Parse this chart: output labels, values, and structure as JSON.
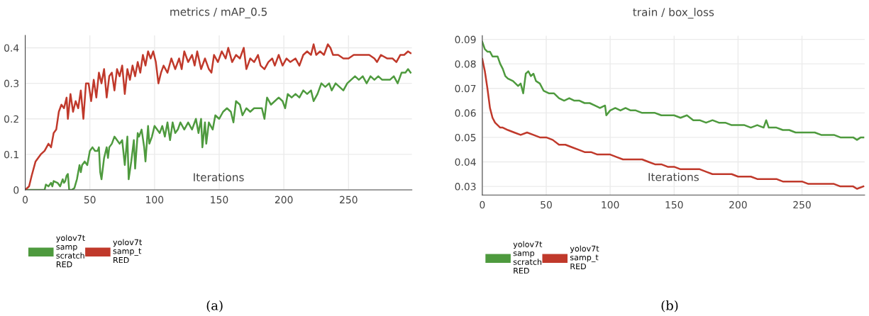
{
  "chart_data": [
    {
      "type": "line",
      "title": "metrics / mAP_0.5",
      "xlabel": "Iterations",
      "xlim": [
        0,
        299
      ],
      "xticks": [
        0,
        50,
        100,
        150,
        200,
        250
      ],
      "ylim": [
        0,
        0.435
      ],
      "yticks": [
        0,
        0.1,
        0.2,
        0.3,
        0.4
      ],
      "grid": true,
      "legend": "bottom left",
      "annotations": [
        "(a)"
      ],
      "series": [
        {
          "name": "yolov7t\nsamp\nscratch\nRED",
          "color": "#4e9a3e",
          "x": [
            0,
            15,
            16,
            18,
            20,
            21,
            22,
            25,
            27,
            29,
            30,
            31,
            32,
            33,
            34,
            36,
            38,
            40,
            42,
            43,
            44,
            46,
            48,
            50,
            52,
            54,
            56,
            57,
            58,
            59,
            61,
            63,
            64,
            65,
            67,
            69,
            71,
            73,
            75,
            77,
            79,
            80,
            82,
            84,
            85,
            87,
            88,
            90,
            92,
            93,
            95,
            96,
            98,
            100,
            102,
            104,
            106,
            108,
            110,
            112,
            114,
            116,
            118,
            120,
            123,
            126,
            129,
            132,
            134,
            136,
            137,
            139,
            140,
            142,
            145,
            147,
            150,
            153,
            156,
            159,
            161,
            163,
            166,
            168,
            171,
            174,
            177,
            180,
            183,
            185,
            187,
            190,
            193,
            196,
            199,
            201,
            203,
            206,
            209,
            212,
            215,
            218,
            221,
            223,
            226,
            229,
            232,
            235,
            237,
            240,
            243,
            246,
            249,
            252,
            255,
            258,
            261,
            264,
            267,
            270,
            273,
            276,
            279,
            282,
            285,
            288,
            291,
            294,
            296,
            298
          ],
          "values": [
            0,
            0,
            0.015,
            0.01,
            0.02,
            0.01,
            0.025,
            0.02,
            0.01,
            0.03,
            0.02,
            0.025,
            0.04,
            0.045,
            0,
            0,
            0.005,
            0.03,
            0.07,
            0.05,
            0.07,
            0.08,
            0.07,
            0.11,
            0.12,
            0.11,
            0.11,
            0.12,
            0.05,
            0.03,
            0.09,
            0.12,
            0.09,
            0.12,
            0.13,
            0.15,
            0.14,
            0.13,
            0.14,
            0.07,
            0.15,
            0.03,
            0.08,
            0.14,
            0.06,
            0.16,
            0.15,
            0.17,
            0.12,
            0.08,
            0.18,
            0.13,
            0.15,
            0.18,
            0.17,
            0.16,
            0.18,
            0.15,
            0.19,
            0.14,
            0.19,
            0.16,
            0.17,
            0.19,
            0.17,
            0.19,
            0.17,
            0.2,
            0.16,
            0.2,
            0.12,
            0.19,
            0.13,
            0.19,
            0.17,
            0.21,
            0.2,
            0.22,
            0.23,
            0.22,
            0.19,
            0.25,
            0.24,
            0.21,
            0.23,
            0.22,
            0.23,
            0.23,
            0.23,
            0.2,
            0.26,
            0.24,
            0.25,
            0.26,
            0.25,
            0.23,
            0.27,
            0.26,
            0.27,
            0.26,
            0.28,
            0.27,
            0.28,
            0.25,
            0.27,
            0.3,
            0.29,
            0.3,
            0.28,
            0.3,
            0.29,
            0.28,
            0.3,
            0.31,
            0.32,
            0.31,
            0.32,
            0.3,
            0.32,
            0.31,
            0.32,
            0.31,
            0.31,
            0.31,
            0.32,
            0.3,
            0.33,
            0.33,
            0.34,
            0.33
          ]
        },
        {
          "name": "yolov7t\nsamp_t\nRED",
          "color": "#c0392b",
          "x": [
            0,
            3,
            5,
            8,
            10,
            12,
            15,
            18,
            20,
            22,
            24,
            26,
            28,
            30,
            32,
            33,
            35,
            37,
            39,
            41,
            43,
            45,
            47,
            49,
            51,
            53,
            55,
            57,
            59,
            61,
            63,
            65,
            67,
            69,
            71,
            73,
            75,
            77,
            79,
            81,
            83,
            85,
            87,
            89,
            91,
            93,
            95,
            97,
            99,
            101,
            103,
            105,
            107,
            110,
            113,
            116,
            119,
            121,
            123,
            126,
            129,
            131,
            133,
            136,
            139,
            142,
            144,
            146,
            149,
            152,
            155,
            157,
            160,
            163,
            166,
            169,
            171,
            174,
            177,
            180,
            182,
            185,
            188,
            191,
            193,
            196,
            199,
            202,
            205,
            209,
            212,
            215,
            218,
            221,
            223,
            225,
            228,
            231,
            234,
            236,
            238,
            242,
            246,
            250,
            254,
            258,
            262,
            266,
            270,
            272,
            275,
            280,
            284,
            287,
            290,
            293,
            296,
            298
          ],
          "values": [
            0,
            0.01,
            0.04,
            0.08,
            0.09,
            0.1,
            0.11,
            0.13,
            0.12,
            0.16,
            0.17,
            0.22,
            0.24,
            0.23,
            0.26,
            0.2,
            0.27,
            0.22,
            0.25,
            0.23,
            0.28,
            0.2,
            0.3,
            0.3,
            0.25,
            0.31,
            0.26,
            0.33,
            0.3,
            0.34,
            0.26,
            0.32,
            0.33,
            0.28,
            0.34,
            0.32,
            0.35,
            0.27,
            0.34,
            0.31,
            0.35,
            0.32,
            0.36,
            0.33,
            0.38,
            0.35,
            0.39,
            0.37,
            0.39,
            0.36,
            0.3,
            0.33,
            0.35,
            0.33,
            0.37,
            0.34,
            0.37,
            0.34,
            0.39,
            0.36,
            0.38,
            0.35,
            0.39,
            0.34,
            0.37,
            0.34,
            0.33,
            0.38,
            0.36,
            0.39,
            0.37,
            0.4,
            0.36,
            0.38,
            0.37,
            0.4,
            0.34,
            0.37,
            0.36,
            0.38,
            0.35,
            0.34,
            0.36,
            0.37,
            0.35,
            0.38,
            0.35,
            0.37,
            0.36,
            0.37,
            0.35,
            0.38,
            0.39,
            0.38,
            0.41,
            0.38,
            0.39,
            0.38,
            0.41,
            0.4,
            0.38,
            0.38,
            0.37,
            0.37,
            0.38,
            0.38,
            0.38,
            0.38,
            0.37,
            0.36,
            0.38,
            0.37,
            0.37,
            0.36,
            0.38,
            0.38,
            0.39,
            0.385
          ]
        }
      ]
    },
    {
      "type": "line",
      "title": "train / box_loss",
      "xlabel": "Iterations",
      "xlim": [
        0,
        299
      ],
      "xticks": [
        0,
        50,
        100,
        150,
        200,
        250
      ],
      "ylim": [
        0.0265,
        0.0915
      ],
      "yticks": [
        0.03,
        0.04,
        0.05,
        0.06,
        0.07,
        0.08,
        0.09
      ],
      "grid": true,
      "legend": "bottom left",
      "annotations": [
        "(b)"
      ],
      "series": [
        {
          "name": "yolov7t\nsamp\nscratch\nRED",
          "color": "#4e9a3e",
          "x": [
            0,
            2,
            4,
            6,
            8,
            12,
            14,
            16,
            18,
            20,
            24,
            28,
            30,
            32,
            34,
            36,
            38,
            40,
            42,
            45,
            48,
            52,
            56,
            60,
            64,
            68,
            72,
            76,
            80,
            84,
            88,
            92,
            96,
            97,
            100,
            104,
            108,
            112,
            116,
            120,
            125,
            130,
            135,
            140,
            145,
            150,
            155,
            160,
            165,
            170,
            175,
            180,
            185,
            190,
            195,
            200,
            205,
            210,
            215,
            220,
            222,
            224,
            230,
            235,
            240,
            245,
            250,
            255,
            260,
            265,
            270,
            275,
            280,
            285,
            290,
            293,
            296,
            298
          ],
          "values": [
            0.089,
            0.086,
            0.085,
            0.085,
            0.083,
            0.083,
            0.08,
            0.078,
            0.075,
            0.074,
            0.073,
            0.071,
            0.072,
            0.068,
            0.076,
            0.077,
            0.075,
            0.076,
            0.073,
            0.072,
            0.069,
            0.068,
            0.068,
            0.066,
            0.065,
            0.066,
            0.065,
            0.065,
            0.064,
            0.064,
            0.063,
            0.062,
            0.063,
            0.059,
            0.061,
            0.062,
            0.061,
            0.062,
            0.061,
            0.061,
            0.06,
            0.06,
            0.06,
            0.059,
            0.059,
            0.059,
            0.058,
            0.059,
            0.057,
            0.057,
            0.056,
            0.057,
            0.056,
            0.056,
            0.055,
            0.055,
            0.055,
            0.054,
            0.055,
            0.054,
            0.057,
            0.054,
            0.054,
            0.053,
            0.053,
            0.052,
            0.052,
            0.052,
            0.052,
            0.051,
            0.051,
            0.051,
            0.05,
            0.05,
            0.05,
            0.049,
            0.05,
            0.05
          ]
        },
        {
          "name": "yolov7t\nsamp_t\nRED",
          "color": "#c0392b",
          "x": [
            0,
            2,
            4,
            6,
            8,
            10,
            12,
            14,
            16,
            20,
            25,
            30,
            35,
            40,
            45,
            50,
            55,
            60,
            65,
            70,
            75,
            80,
            85,
            90,
            95,
            100,
            105,
            110,
            115,
            120,
            125,
            130,
            135,
            140,
            145,
            150,
            155,
            160,
            165,
            170,
            175,
            180,
            185,
            190,
            195,
            200,
            205,
            210,
            215,
            220,
            225,
            230,
            235,
            240,
            245,
            250,
            255,
            260,
            265,
            270,
            275,
            280,
            285,
            290,
            293,
            298
          ],
          "values": [
            0.082,
            0.077,
            0.07,
            0.062,
            0.058,
            0.056,
            0.055,
            0.054,
            0.054,
            0.053,
            0.052,
            0.051,
            0.052,
            0.051,
            0.05,
            0.05,
            0.049,
            0.047,
            0.047,
            0.046,
            0.045,
            0.044,
            0.044,
            0.043,
            0.043,
            0.043,
            0.042,
            0.041,
            0.041,
            0.041,
            0.041,
            0.04,
            0.039,
            0.039,
            0.038,
            0.038,
            0.037,
            0.037,
            0.037,
            0.037,
            0.036,
            0.035,
            0.035,
            0.035,
            0.035,
            0.034,
            0.034,
            0.034,
            0.033,
            0.033,
            0.033,
            0.033,
            0.032,
            0.032,
            0.032,
            0.032,
            0.031,
            0.031,
            0.031,
            0.031,
            0.031,
            0.03,
            0.03,
            0.03,
            0.029,
            0.03
          ]
        }
      ]
    }
  ]
}
